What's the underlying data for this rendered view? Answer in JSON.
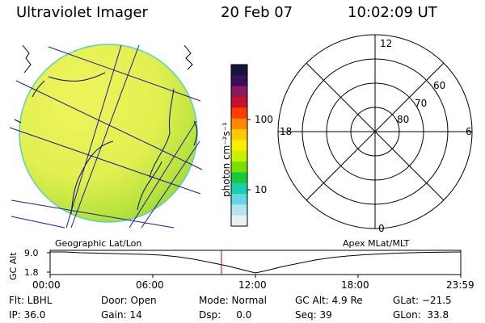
{
  "header": {
    "instrument": "Ultraviolet Imager",
    "date": "20 Feb 07",
    "time": "10:02:09 UT"
  },
  "colorbar": {
    "unit_label": "photon cm⁻²s⁻¹",
    "ticks": [
      "100",
      "10"
    ],
    "colors_top_to_bottom": [
      "#14143c",
      "#3a0f5a",
      "#8a1a5a",
      "#c8102d",
      "#ff3a00",
      "#ff8800",
      "#ffc800",
      "#f5f000",
      "#c8f000",
      "#78e000",
      "#18c83c",
      "#18d0b0",
      "#60d8e8",
      "#b4e4f0",
      "#e8f0f4"
    ]
  },
  "left_panel": {
    "caption": "Geographic Lat/Lon",
    "fill_color": "#e6f25a"
  },
  "right_panel": {
    "caption": "Apex MLat/MLT",
    "mlt_labels": {
      "top": "12",
      "left": "18",
      "right": "6",
      "bottom": "0"
    },
    "lat_labels": [
      "60",
      "70",
      "80"
    ]
  },
  "altitude_plot": {
    "axis_label": "GC Alt",
    "y_ticks": [
      "9.0",
      "1.8"
    ],
    "x_ticks": [
      "00:00",
      "06:00",
      "12:00",
      "18:00",
      "23:59"
    ],
    "current_time_marker_color": "#cc0000"
  },
  "status": {
    "row1": {
      "filter": "Flt: LBHL",
      "door": "Door: Open",
      "mode": "Mode: Normal",
      "gc_alt": "GC Alt: 4.9 Re",
      "glat": "GLat: −21.5"
    },
    "row2": {
      "ip": "IP: 36.0",
      "gain": "Gain: 14",
      "dsp": "Dsp:     0.0",
      "seq": "Seq: 39",
      "glon": "GLon:  33.8"
    }
  }
}
